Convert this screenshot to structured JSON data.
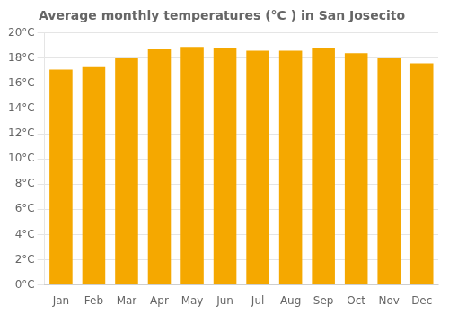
{
  "chart_data": {
    "type": "bar",
    "title": "Average monthly temperatures (°C ) in San Josecito",
    "categories": [
      "Jan",
      "Feb",
      "Mar",
      "Apr",
      "May",
      "Jun",
      "Jul",
      "Aug",
      "Sep",
      "Oct",
      "Nov",
      "Dec"
    ],
    "values": [
      17.1,
      17.3,
      18.0,
      18.7,
      18.9,
      18.8,
      18.6,
      18.6,
      18.8,
      18.4,
      18.0,
      17.6
    ],
    "color": "#F5A800",
    "ylim": [
      0,
      20
    ],
    "yticks": [
      {
        "value": 0,
        "label": "0°C"
      },
      {
        "value": 2,
        "label": "2°C"
      },
      {
        "value": 4,
        "label": "4°C"
      },
      {
        "value": 6,
        "label": "6°C"
      },
      {
        "value": 8,
        "label": "8°C"
      },
      {
        "value": 10,
        "label": "10°C"
      },
      {
        "value": 12,
        "label": "12°C"
      },
      {
        "value": 14,
        "label": "14°C"
      },
      {
        "value": 16,
        "label": "16°C"
      },
      {
        "value": 18,
        "label": "18°C"
      },
      {
        "value": 20,
        "label": "20°C"
      }
    ],
    "grid": true
  }
}
